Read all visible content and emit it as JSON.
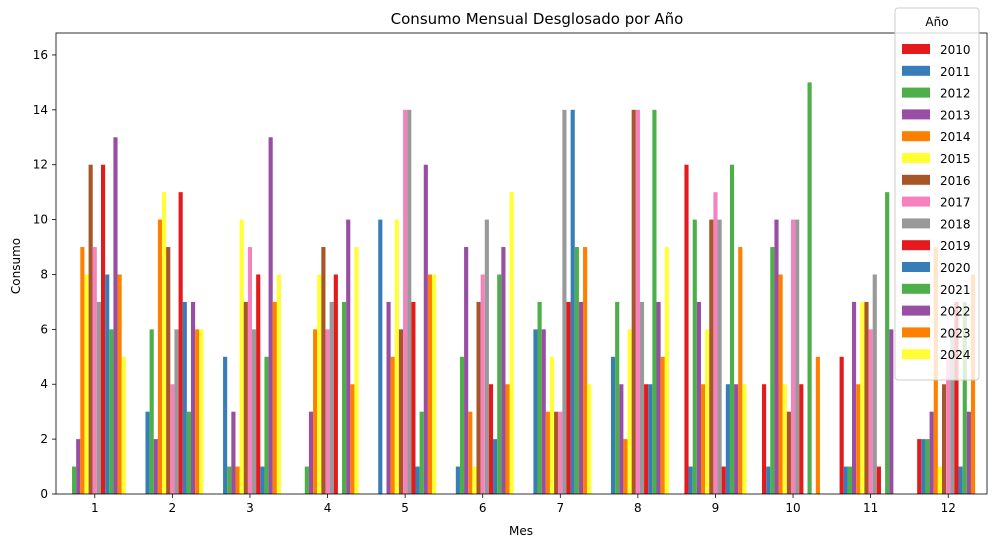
{
  "chart_data": {
    "type": "bar",
    "title": "Consumo Mensual Desglosado por Año",
    "xlabel": "Mes",
    "ylabel": "Consumo",
    "ylim": [
      0,
      16.8
    ],
    "yticks": [
      0,
      2,
      4,
      6,
      8,
      10,
      12,
      14,
      16
    ],
    "grid": false,
    "legend": {
      "title": "Año",
      "placement": "top-right"
    },
    "categories": [
      "1",
      "2",
      "3",
      "4",
      "5",
      "6",
      "7",
      "8",
      "9",
      "10",
      "11",
      "12"
    ],
    "series": [
      {
        "name": "2010",
        "color": "#e41a1c",
        "values": [
          0,
          0,
          0,
          0,
          0,
          0,
          0,
          0,
          12,
          4,
          5,
          2
        ]
      },
      {
        "name": "2011",
        "color": "#377eb8",
        "values": [
          0,
          3,
          5,
          0,
          10,
          1,
          6,
          5,
          1,
          1,
          1,
          2
        ]
      },
      {
        "name": "2012",
        "color": "#4daf4a",
        "values": [
          1,
          6,
          1,
          1,
          0,
          5,
          7,
          7,
          10,
          9,
          1,
          2
        ]
      },
      {
        "name": "2013",
        "color": "#984ea3",
        "values": [
          2,
          2,
          3,
          3,
          7,
          9,
          6,
          4,
          7,
          10,
          7,
          3
        ]
      },
      {
        "name": "2014",
        "color": "#ff7f00",
        "values": [
          9,
          10,
          1,
          6,
          5,
          3,
          3,
          2,
          4,
          8,
          4,
          9
        ]
      },
      {
        "name": "2015",
        "color": "#ffff33",
        "values": [
          8,
          11,
          10,
          8,
          10,
          1,
          5,
          6,
          6,
          4,
          7,
          1
        ]
      },
      {
        "name": "2016",
        "color": "#a65628",
        "values": [
          12,
          9,
          7,
          9,
          6,
          7,
          3,
          14,
          10,
          3,
          7,
          4
        ]
      },
      {
        "name": "2017",
        "color": "#f781bf",
        "values": [
          9,
          4,
          9,
          6,
          14,
          8,
          3,
          14,
          11,
          10,
          6,
          5
        ]
      },
      {
        "name": "2018",
        "color": "#999999",
        "values": [
          7,
          6,
          6,
          7,
          14,
          10,
          14,
          7,
          10,
          10,
          8,
          6
        ]
      },
      {
        "name": "2019",
        "color": "#e41a1c",
        "values": [
          12,
          11,
          8,
          8,
          7,
          4,
          7,
          4,
          1,
          4,
          1,
          7
        ]
      },
      {
        "name": "2020",
        "color": "#377eb8",
        "values": [
          8,
          7,
          1,
          0,
          1,
          2,
          14,
          4,
          4,
          0,
          0,
          1
        ]
      },
      {
        "name": "2021",
        "color": "#4daf4a",
        "values": [
          6,
          3,
          5,
          7,
          3,
          8,
          9,
          14,
          12,
          15,
          11,
          7
        ]
      },
      {
        "name": "2022",
        "color": "#984ea3",
        "values": [
          13,
          7,
          13,
          10,
          12,
          9,
          7,
          7,
          4,
          0,
          6,
          3
        ]
      },
      {
        "name": "2023",
        "color": "#ff7f00",
        "values": [
          8,
          6,
          7,
          4,
          8,
          4,
          9,
          5,
          9,
          5,
          0,
          8
        ]
      },
      {
        "name": "2024",
        "color": "#ffff33",
        "values": [
          5,
          6,
          8,
          9,
          8,
          11,
          4,
          9,
          4,
          0,
          0,
          0
        ]
      }
    ]
  }
}
